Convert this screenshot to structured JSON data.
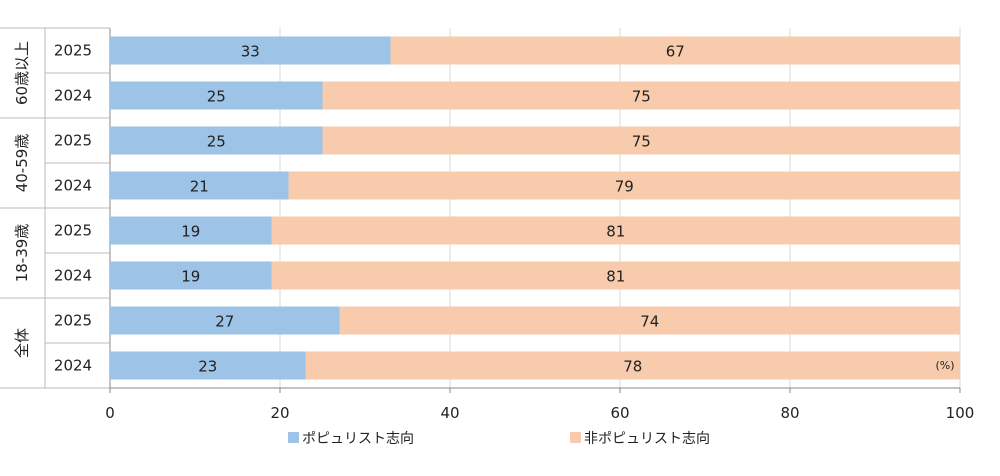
{
  "chart_data": {
    "type": "bar",
    "orientation": "horizontal",
    "stacked": true,
    "groups": [
      {
        "label": "60歳以上",
        "rows": [
          {
            "year": "2025",
            "values": [
              33,
              67
            ]
          },
          {
            "year": "2024",
            "values": [
              25,
              75
            ]
          }
        ]
      },
      {
        "label": "40-59歳",
        "rows": [
          {
            "year": "2025",
            "values": [
              25,
              75
            ]
          },
          {
            "year": "2024",
            "values": [
              21,
              79
            ]
          }
        ]
      },
      {
        "label": "18-39歳",
        "rows": [
          {
            "year": "2025",
            "values": [
              19,
              81
            ]
          },
          {
            "year": "2024",
            "values": [
              19,
              81
            ]
          }
        ]
      },
      {
        "label": "全体",
        "rows": [
          {
            "year": "2025",
            "values": [
              27,
              74
            ]
          },
          {
            "year": "2024",
            "values": [
              23,
              78
            ]
          }
        ]
      }
    ],
    "series": [
      {
        "name": "ポピュリスト志向",
        "color": "#9dc3e6"
      },
      {
        "name": "非ポピュリスト志向",
        "color": "#f8cbad"
      }
    ],
    "xlim": [
      0,
      100
    ],
    "xticks": [
      "0",
      "20",
      "40",
      "60",
      "80",
      "100"
    ],
    "unit_label": "(%)",
    "grid": true,
    "legend": "bottom"
  }
}
